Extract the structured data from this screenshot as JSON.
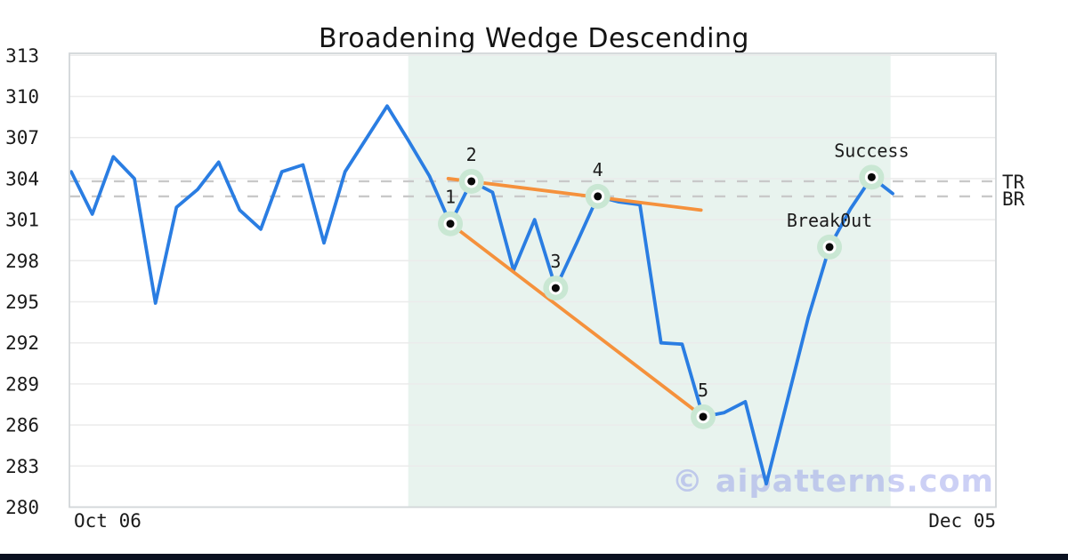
{
  "chart_data": {
    "type": "line",
    "title": "Broadening Wedge Descending",
    "xlabel": "",
    "ylabel": "",
    "series": [
      {
        "name": "price",
        "values": [
          304.5,
          301.4,
          305.6,
          304.0,
          294.9,
          301.9,
          303.2,
          305.2,
          301.7,
          300.3,
          304.5,
          305.0,
          299.3,
          304.5,
          306.9,
          309.3,
          306.8,
          304.2,
          300.7,
          303.8,
          303.0,
          297.3,
          301.0,
          296.0,
          299.3,
          302.7,
          302.3,
          302.1,
          292.0,
          291.9,
          286.6,
          286.9,
          287.7,
          281.7,
          287.8,
          293.9,
          299.0,
          301.8,
          304.1,
          302.9
        ]
      }
    ],
    "trendlines": [
      {
        "name": "upper-trendline",
        "x1": 17.9,
        "y1": 304.0,
        "x2": 29.9,
        "y2": 301.7
      },
      {
        "name": "lower-trendline",
        "x1": 18.0,
        "y1": 300.7,
        "x2": 30.0,
        "y2": 286.6
      }
    ],
    "hlines": [
      {
        "label": "TR",
        "y": 303.8
      },
      {
        "label": "BR",
        "y": 302.7
      }
    ],
    "region": {
      "x1": 16.0,
      "x2": 38.9
    },
    "annotations": [
      {
        "x": 18,
        "y": 300.7,
        "label": "1"
      },
      {
        "x": 19,
        "y": 303.8,
        "label": "2"
      },
      {
        "x": 23,
        "y": 296.0,
        "label": "3"
      },
      {
        "x": 25,
        "y": 302.7,
        "label": "4"
      },
      {
        "x": 30,
        "y": 286.6,
        "label": "5"
      },
      {
        "x": 36,
        "y": 299.0,
        "label": "Break0ut"
      },
      {
        "x": 38,
        "y": 304.1,
        "label": "Success"
      }
    ],
    "y_ticks": [
      280,
      283,
      286,
      289,
      292,
      295,
      298,
      301,
      304,
      307,
      310,
      313
    ],
    "x_ticks": [
      {
        "label": "Oct 06",
        "i": 1.73
      },
      {
        "label": "Dec 05",
        "i": 42.3
      }
    ],
    "ylim": [
      280,
      313.15
    ],
    "xlim": [
      -0.085,
      43.9
    ],
    "grid": true,
    "legend": "none",
    "watermark": "© aipatterns.com",
    "colors": {
      "price_line": "#2a7de2",
      "trendline": "#f5913c",
      "region_fill": "#e8f3ee",
      "marker_halo": "#c9e7d3",
      "marker_ring": "#ffffff",
      "marker_dot": "#0a0a0a",
      "gridline": "#ebebeb",
      "dashed_line": "#c9c9c9",
      "plot_border": "#d2d6d9",
      "text": "#1a1a1a",
      "watermark_color": "rgba(134,143,232,0.42)",
      "bottom_bar": "#0a1120"
    }
  }
}
